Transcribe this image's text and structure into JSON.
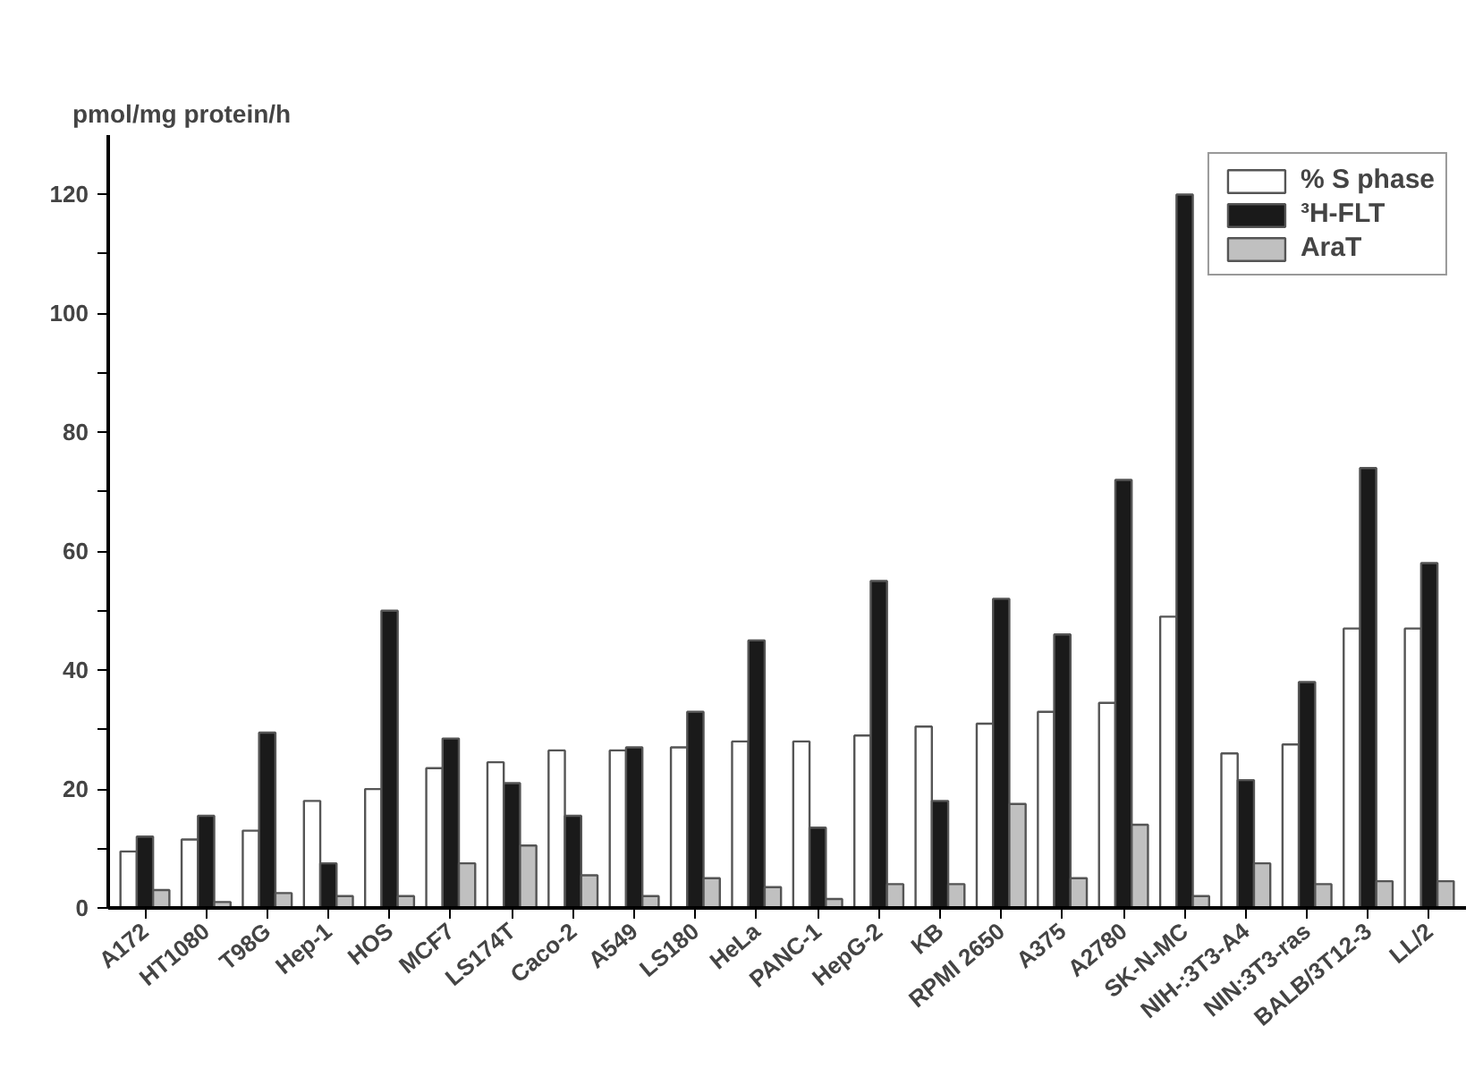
{
  "chart_data": {
    "type": "bar",
    "ylabel": "pmol/mg protein/h",
    "categories": [
      "A172",
      "HT1080",
      "T98G",
      "Hep-1",
      "HOS",
      "MCF7",
      "LS174T",
      "Caco-2",
      "A549",
      "LS180",
      "HeLa",
      "PANC-1",
      "HepG-2",
      "KB",
      "RPMI 2650",
      "A375",
      "A2780",
      "SK-N-MC",
      "NIH-:3T3-A4",
      "NIN:3T3-ras",
      "BALB/3T12-3",
      "LL/2"
    ],
    "series": [
      {
        "name": "% S phase",
        "color": "#ffffff",
        "values": [
          9.5,
          11.5,
          13,
          18,
          20,
          23.5,
          24.5,
          26.5,
          26.5,
          27,
          28,
          28,
          29,
          30.5,
          31,
          33,
          34.5,
          49,
          26,
          27.5,
          47,
          47
        ]
      },
      {
        "name": "³H-FLT",
        "color": "#1a1a1a",
        "values": [
          12,
          15.5,
          29.5,
          7.5,
          50,
          28.5,
          21,
          15.5,
          27,
          33,
          45,
          13.5,
          55,
          18,
          52,
          46,
          72,
          120,
          21.5,
          38,
          74,
          58
        ]
      },
      {
        "name": "AraT",
        "color": "#c0c0c0",
        "values": [
          3,
          1,
          2.5,
          2,
          2,
          7.5,
          10.5,
          5.5,
          2,
          5,
          3.5,
          1.5,
          4,
          4,
          17.5,
          5,
          14,
          2,
          7.5,
          4,
          4.5,
          4.5
        ]
      }
    ],
    "ylim": [
      0,
      130
    ],
    "yticks": [
      0,
      {
        "value": 10,
        "label": null
      },
      20,
      {
        "value": 30,
        "label": null
      },
      40,
      {
        "value": 50,
        "label": null
      },
      60,
      {
        "value": 70,
        "label": null
      },
      80,
      {
        "value": 90,
        "label": null
      },
      100,
      {
        "value": 110,
        "label": null
      },
      120
    ],
    "grid": false,
    "legend": "top right"
  }
}
